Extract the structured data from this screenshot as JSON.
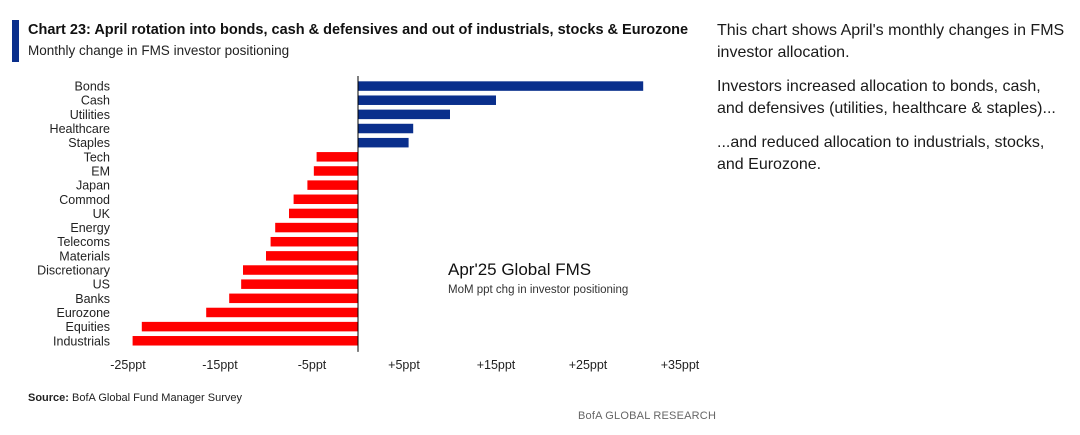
{
  "header": {
    "title": "Chart 23: April rotation into bonds, cash & defensives and out of industrials, stocks & Eurozone",
    "subtitle": "Monthly change in FMS investor positioning"
  },
  "chart_data": {
    "type": "bar",
    "orientation": "horizontal",
    "annotation_title": "Apr'25 Global FMS",
    "annotation_subtitle": "MoM ppt chg in investor positioning",
    "categories": [
      "Bonds",
      "Cash",
      "Utilities",
      "Healthcare",
      "Staples",
      "Tech",
      "EM",
      "Japan",
      "Commod",
      "UK",
      "Energy",
      "Telecoms",
      "Materials",
      "Discretionary",
      "US",
      "Banks",
      "Eurozone",
      "Equities",
      "Industrials"
    ],
    "values": [
      31,
      15,
      10,
      6,
      5.5,
      -4.5,
      -4.8,
      -5.5,
      -7,
      -7.5,
      -9,
      -9.5,
      -10,
      -12.5,
      -12.7,
      -14,
      -16.5,
      -23.5,
      -24.5
    ],
    "xlim": [
      -25,
      35
    ],
    "xticks": [
      -25,
      -15,
      -5,
      5,
      15,
      25,
      35
    ],
    "xtick_labels": [
      "-25ppt",
      "-15ppt",
      "-5ppt",
      "+5ppt",
      "+15ppt",
      "+25ppt",
      "+35ppt"
    ],
    "colors": {
      "positive": "#0a2f8c",
      "negative": "#ff0000",
      "axis": "#000000"
    },
    "grid": false,
    "legend": "none"
  },
  "footer": {
    "source_label": "Source:",
    "source_text": " BofA Global Fund Manager Survey",
    "brand": "BofA GLOBAL RESEARCH"
  },
  "commentary": {
    "p1": "This chart shows April's monthly changes in FMS investor allocation.",
    "p2": "Investors increased allocation to bonds, cash, and defensives (utilities, healthcare & staples)...",
    "p3": "...and reduced allocation to industrials, stocks, and Eurozone."
  }
}
